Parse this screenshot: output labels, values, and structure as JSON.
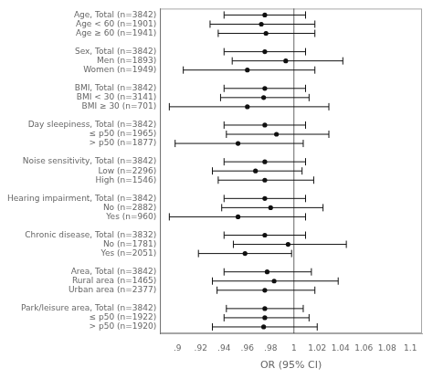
{
  "chart_data": {
    "type": "forest",
    "orientation": "horizontal",
    "categories": [
      "Age, Total (n=3842)",
      "Age < 60 (n=1901)",
      "Age ≥ 60 (n=1941)",
      null,
      "Sex, Total (n=3842)",
      "Men (n=1893)",
      "Women (n=1949)",
      null,
      "BMI, Total (n=3842)",
      "BMI < 30 (n=3141)",
      "BMI ≥ 30 (n=701)",
      null,
      "Day sleepiness, Total (n=3842)",
      "≤ p50 (n=1965)",
      "> p50 (n=1877)",
      null,
      "Noise sensitivity, Total (n=3842)",
      "Low (n=2296)",
      "High (n=1546)",
      null,
      "Hearing impairment, Total (n=3842)",
      "No (n=2882)",
      "Yes (n=960)",
      null,
      "Chronic disease, Total (n=3832)",
      "No (n=1781)",
      "Yes (n=2051)",
      null,
      "Area, Total (n=3842)",
      "Rural area (n=1465)",
      "Urban area (n=2377)",
      null,
      "Park/leisure area, Total (n=3842)",
      "≤ p50 (n=1922)",
      "> p50 (n=1920)"
    ],
    "values": [
      0.975,
      0.972,
      0.976,
      null,
      0.975,
      0.993,
      0.96,
      null,
      0.975,
      0.974,
      0.96,
      null,
      0.975,
      0.985,
      0.952,
      null,
      0.975,
      0.967,
      0.975,
      null,
      0.975,
      0.98,
      0.952,
      null,
      0.975,
      0.995,
      0.958,
      null,
      0.977,
      0.983,
      0.975,
      null,
      0.975,
      0.975,
      0.974
    ],
    "ci_low": [
      0.94,
      0.928,
      0.935,
      null,
      0.94,
      0.947,
      0.905,
      null,
      0.94,
      0.937,
      0.893,
      null,
      0.94,
      0.942,
      0.898,
      null,
      0.94,
      0.93,
      0.935,
      null,
      0.94,
      0.938,
      0.893,
      null,
      0.94,
      0.948,
      0.918,
      null,
      0.94,
      0.93,
      0.934,
      null,
      0.942,
      0.94,
      0.93
    ],
    "ci_high": [
      1.01,
      1.018,
      1.018,
      null,
      1.01,
      1.042,
      1.018,
      null,
      1.01,
      1.013,
      1.03,
      null,
      1.01,
      1.03,
      1.008,
      null,
      1.01,
      1.007,
      1.017,
      null,
      1.01,
      1.025,
      1.01,
      null,
      1.01,
      1.045,
      0.998,
      null,
      1.015,
      1.038,
      1.018,
      null,
      1.008,
      1.013,
      1.02
    ],
    "color": "#111111",
    "xlabel": "OR (95% CI)",
    "xlim": [
      0.885,
      1.11
    ],
    "xticks": [
      {
        "value": 0.9,
        "label": ".9"
      },
      {
        "value": 0.92,
        "label": ".92"
      },
      {
        "value": 0.94,
        "label": ".94"
      },
      {
        "value": 0.96,
        "label": ".96"
      },
      {
        "value": 0.98,
        "label": ".98"
      },
      1,
      1.02,
      1.04,
      1.06,
      1.08,
      1.1
    ],
    "reference_line": 1.0,
    "grid": false
  }
}
